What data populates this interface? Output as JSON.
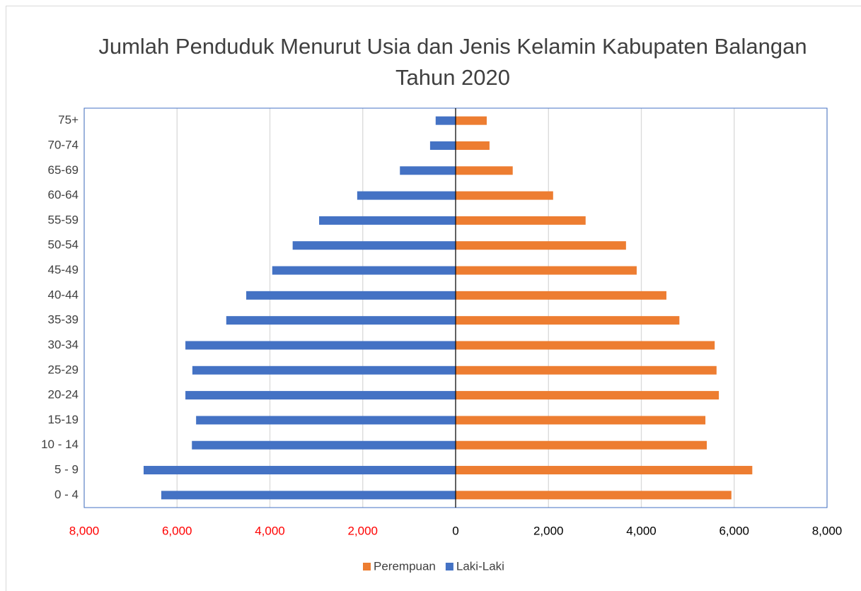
{
  "chart_data": {
    "type": "bar",
    "orientation": "horizontal",
    "stacked": true,
    "title": "Jumlah Penduduk Menurut Usia dan Jenis Kelamin Kabupaten Balangan Tahun 2020",
    "categories": [
      "0 - 4",
      "5 - 9",
      "10 - 14",
      "15-19",
      "20-24",
      "25-29",
      "30-34",
      "35-39",
      "40-44",
      "45-49",
      "50-54",
      "55-59",
      "60-64",
      "65-69",
      "70-74",
      "75+"
    ],
    "series": [
      {
        "name": "Perempuan",
        "color": "#ed7d31",
        "values": [
          5940,
          6390,
          5410,
          5380,
          5670,
          5620,
          5580,
          4820,
          4540,
          3900,
          3670,
          2800,
          2100,
          1230,
          730,
          670
        ]
      },
      {
        "name": "Laki-Laki",
        "color": "#4472c4",
        "values": [
          -6340,
          -6720,
          -5680,
          -5590,
          -5820,
          -5670,
          -5820,
          -4940,
          -4510,
          -3950,
          -3510,
          -2940,
          -2120,
          -1200,
          -550,
          -430
        ]
      }
    ],
    "xlim": [
      -8000,
      8000
    ],
    "xticks": [
      {
        "value": -8000,
        "label": "8,000"
      },
      {
        "value": -6000,
        "label": "6,000"
      },
      {
        "value": -4000,
        "label": "4,000"
      },
      {
        "value": -2000,
        "label": "2,000"
      },
      0,
      {
        "value": 2000,
        "label": "2,000"
      },
      {
        "value": 4000,
        "label": "4,000"
      },
      {
        "value": 6000,
        "label": "6,000"
      },
      {
        "value": 8000,
        "label": "8,000"
      }
    ],
    "xtick_label_colors": [
      "#ff0000",
      "#ff0000",
      "#ff0000",
      "#ff0000",
      "#000000",
      "#000000",
      "#000000",
      "#000000",
      "#000000"
    ],
    "grid": true,
    "legend": "bottom"
  }
}
